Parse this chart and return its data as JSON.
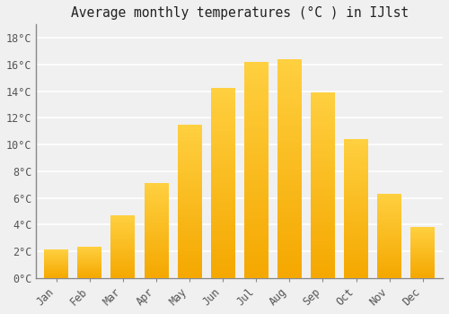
{
  "title": "Average monthly temperatures (°C ) in IJlst",
  "months": [
    "Jan",
    "Feb",
    "Mar",
    "Apr",
    "May",
    "Jun",
    "Jul",
    "Aug",
    "Sep",
    "Oct",
    "Nov",
    "Dec"
  ],
  "values": [
    2.1,
    2.3,
    4.7,
    7.1,
    11.5,
    14.2,
    16.2,
    16.4,
    13.9,
    10.4,
    6.3,
    3.8
  ],
  "bar_color_dark": "#F5A800",
  "bar_color_light": "#FFD040",
  "ylim": [
    0,
    19
  ],
  "yticks": [
    0,
    2,
    4,
    6,
    8,
    10,
    12,
    14,
    16,
    18
  ],
  "background_color": "#f0f0f0",
  "grid_color": "#ffffff",
  "title_fontsize": 10.5,
  "tick_fontsize": 8.5,
  "spine_color": "#888888"
}
